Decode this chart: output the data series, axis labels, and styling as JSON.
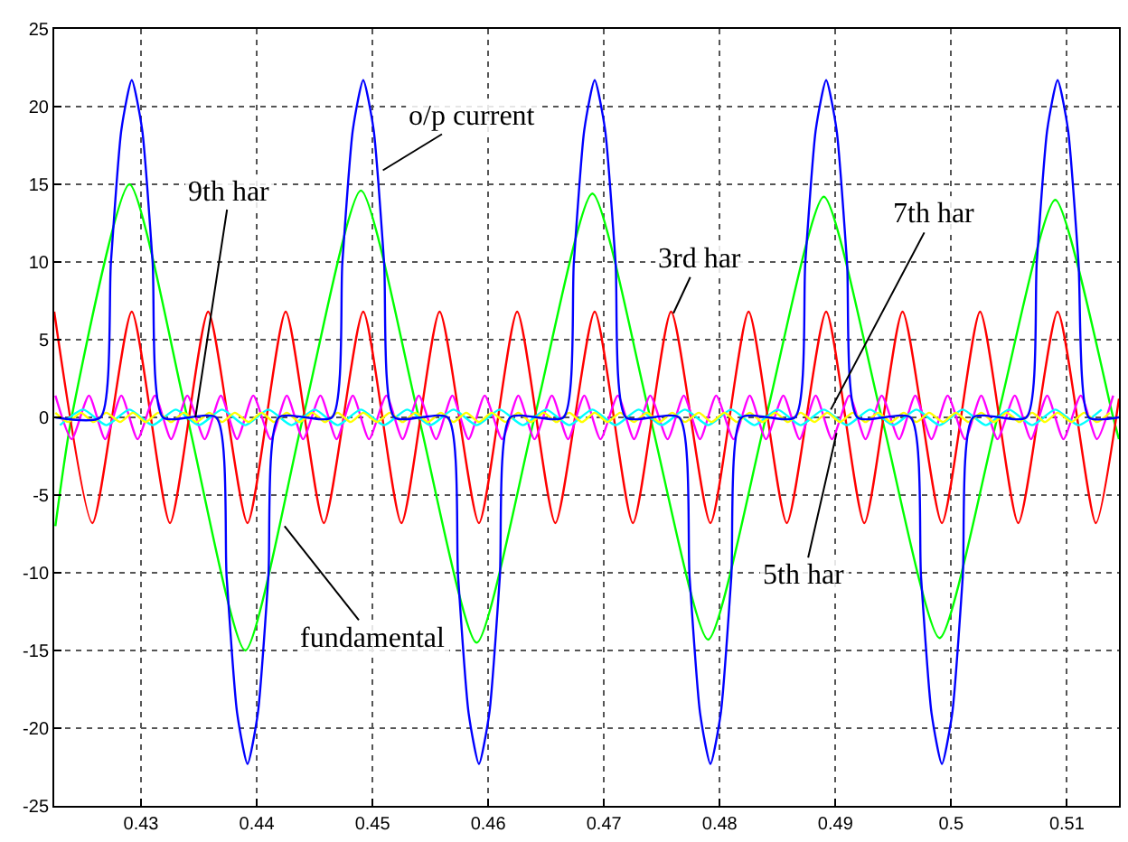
{
  "chart_data": {
    "type": "line",
    "xlim": [
      0.4225,
      0.5145
    ],
    "ylim": [
      -25,
      25
    ],
    "xticks": [
      0.43,
      0.44,
      0.45,
      0.46,
      0.47,
      0.48,
      0.49,
      0.5,
      0.51
    ],
    "yticks": [
      -25,
      -20,
      -15,
      -10,
      -5,
      0,
      5,
      10,
      15,
      20,
      25
    ],
    "grid": true,
    "marker": "none",
    "line_style": "solid",
    "series": [
      {
        "color": "#00ff00",
        "x": [
          0.4226,
          0.424,
          0.429,
          0.434,
          0.439,
          0.444,
          0.449,
          0.454,
          0.459,
          0.464,
          0.469,
          0.474,
          0.479,
          0.484,
          0.489,
          0.494,
          0.499,
          0.504,
          0.509,
          0.514,
          0.5145
        ],
        "values": [
          -7,
          0,
          15,
          0,
          -15,
          0,
          14.6,
          0,
          -14.5,
          0,
          14.4,
          0,
          -14.3,
          0,
          14.2,
          0,
          -14.2,
          0,
          14,
          0,
          -1.4
        ]
      },
      {
        "color": "#ff0000",
        "x": [
          0.4225,
          0.4258,
          0.4292,
          0.4325,
          0.4358,
          0.4392,
          0.4425,
          0.4458,
          0.4492,
          0.4525,
          0.4558,
          0.4592,
          0.4625,
          0.4658,
          0.4692,
          0.4725,
          0.4758,
          0.4792,
          0.4825,
          0.4858,
          0.4892,
          0.4925,
          0.4958,
          0.4992,
          0.5025,
          0.5058,
          0.5092,
          0.5125,
          0.5145
        ],
        "values": [
          6.8,
          -6.8,
          6.8,
          -6.8,
          6.8,
          -6.8,
          6.8,
          -6.8,
          6.8,
          -6.8,
          6.8,
          -6.8,
          6.8,
          -6.8,
          6.8,
          -6.8,
          6.8,
          -6.8,
          6.8,
          -6.8,
          6.8,
          -6.8,
          6.8,
          -6.8,
          6.8,
          -6.8,
          6.8,
          -6.8,
          1.2
        ]
      },
      {
        "color": "#ff00ff",
        "x": [
          0.4226,
          0.424,
          0.4255,
          0.4269,
          0.4283,
          0.4297,
          0.4312,
          0.4326,
          0.434,
          0.4355,
          0.4369,
          0.4383,
          0.4397,
          0.4412,
          0.4426,
          0.444,
          0.4455,
          0.4469,
          0.4483,
          0.4497,
          0.4512,
          0.4526,
          0.454,
          0.4555,
          0.4569,
          0.4583,
          0.4597,
          0.4612,
          0.4626,
          0.464,
          0.4655,
          0.4669,
          0.4683,
          0.4697,
          0.4712,
          0.4726,
          0.474,
          0.4755,
          0.4769,
          0.4783,
          0.4797,
          0.4812,
          0.4826,
          0.484,
          0.4855,
          0.4869,
          0.4883,
          0.4897,
          0.4912,
          0.4926,
          0.494,
          0.4955,
          0.4969,
          0.4983,
          0.4997,
          0.5012,
          0.5026,
          0.504,
          0.5055,
          0.5069,
          0.5083,
          0.5097,
          0.5112,
          0.5126,
          0.514
        ],
        "values": [
          1.4,
          -1.4,
          1.4,
          -1.4,
          1.4,
          -1.4,
          1.4,
          -1.4,
          1.4,
          -1.4,
          1.4,
          -1.4,
          1.4,
          -1.4,
          1.4,
          -1.4,
          1.4,
          -1.4,
          1.4,
          -1.4,
          1.4,
          -1.4,
          1.4,
          -1.4,
          1.4,
          -1.4,
          1.4,
          -1.4,
          1.4,
          -1.4,
          1.4,
          -1.4,
          1.4,
          -1.4,
          1.4,
          -1.4,
          1.4,
          -1.4,
          1.4,
          -1.4,
          1.4,
          -1.4,
          1.4,
          -1.4,
          1.4,
          -1.4,
          1.4,
          -1.4,
          1.4,
          -1.4,
          1.4,
          -1.4,
          1.4,
          -1.4,
          1.4,
          -1.4,
          1.4,
          -1.4,
          1.4,
          -1.4,
          1.4,
          -1.4,
          1.4,
          -1.4,
          1.4
        ]
      },
      {
        "color": "#00ffff",
        "x": [
          0.423,
          0.425,
          0.427,
          0.429,
          0.431,
          0.433,
          0.435,
          0.437,
          0.439,
          0.441,
          0.443,
          0.445,
          0.447,
          0.449,
          0.451,
          0.453,
          0.455,
          0.457,
          0.459,
          0.461,
          0.463,
          0.465,
          0.467,
          0.469,
          0.471,
          0.473,
          0.475,
          0.477,
          0.479,
          0.481,
          0.483,
          0.485,
          0.487,
          0.489,
          0.491,
          0.493,
          0.495,
          0.497,
          0.499,
          0.501,
          0.503,
          0.505,
          0.507,
          0.509,
          0.511,
          0.513
        ],
        "values": [
          -0.5,
          0.5,
          -0.5,
          0.5,
          -0.5,
          0.5,
          -0.5,
          0.5,
          -0.5,
          0.5,
          -0.5,
          0.5,
          -0.5,
          0.5,
          -0.5,
          0.5,
          -0.5,
          0.5,
          -0.5,
          0.5,
          -0.5,
          0.5,
          -0.5,
          0.5,
          -0.5,
          0.5,
          -0.5,
          0.5,
          -0.5,
          0.5,
          -0.5,
          0.5,
          -0.5,
          0.5,
          -0.5,
          0.5,
          -0.5,
          0.5,
          -0.5,
          0.5,
          -0.5,
          0.5,
          -0.5,
          0.5,
          -0.5,
          0.5
        ]
      },
      {
        "color": "#ffff00",
        "x": [
          0.4226,
          0.4237,
          0.4248,
          0.4259,
          0.427,
          0.4282,
          0.4293,
          0.4304,
          0.4315,
          0.4326,
          0.4337,
          0.4348,
          0.4359,
          0.437,
          0.4381,
          0.4393,
          0.4404,
          0.4415,
          0.4426,
          0.4437,
          0.4448,
          0.4459,
          0.447,
          0.4481,
          0.4492,
          0.4504,
          0.4515,
          0.4526,
          0.4537,
          0.4548,
          0.4559,
          0.457,
          0.4581,
          0.4592,
          0.4603,
          0.4615,
          0.4626,
          0.4637,
          0.4648,
          0.4659,
          0.467,
          0.4681,
          0.4692,
          0.4703,
          0.4714,
          0.4726,
          0.4737,
          0.4748,
          0.4759,
          0.477,
          0.4782,
          0.4793,
          0.4804,
          0.4815,
          0.4826,
          0.4837,
          0.4848,
          0.4859,
          0.487,
          0.4882,
          0.4893,
          0.4904,
          0.4915,
          0.4926,
          0.4937,
          0.4948,
          0.4959,
          0.497,
          0.4981,
          0.4993,
          0.5004,
          0.5015,
          0.5026,
          0.5037,
          0.5048,
          0.5059,
          0.507,
          0.5081,
          0.5092,
          0.5104,
          0.5115,
          0.5126,
          0.5137
        ],
        "values": [
          0.3,
          -0.3,
          0.3,
          -0.3,
          0.3,
          -0.3,
          0.3,
          -0.3,
          0.3,
          -0.3,
          0.3,
          -0.3,
          0.3,
          -0.3,
          0.3,
          -0.3,
          0.3,
          -0.3,
          0.3,
          -0.3,
          0.3,
          -0.3,
          0.3,
          -0.3,
          0.3,
          -0.3,
          0.3,
          -0.3,
          0.3,
          -0.3,
          0.3,
          -0.3,
          0.3,
          -0.3,
          0.3,
          -0.3,
          0.3,
          -0.3,
          0.3,
          -0.3,
          0.3,
          -0.3,
          0.3,
          -0.3,
          0.3,
          -0.3,
          0.3,
          -0.3,
          0.3,
          -0.3,
          0.3,
          -0.3,
          0.3,
          -0.3,
          0.3,
          -0.3,
          0.3,
          -0.3,
          0.3,
          -0.3,
          0.3,
          -0.3,
          0.3,
          -0.3,
          0.3,
          -0.3,
          0.3,
          -0.3,
          0.3,
          -0.3,
          0.3,
          -0.3,
          0.3,
          -0.3,
          0.3,
          -0.3,
          0.3,
          -0.3,
          0.3,
          -0.3,
          0.3,
          -0.3,
          0.3
        ]
      },
      {
        "color": "#0000ff",
        "x": [
          0.4226,
          0.4265,
          0.4274,
          0.4283,
          0.4292,
          0.4301,
          0.431,
          0.4319,
          0.4365,
          0.4374,
          0.4383,
          0.4392,
          0.4401,
          0.441,
          0.4419,
          0.4465,
          0.4474,
          0.4483,
          0.4492,
          0.4501,
          0.451,
          0.4519,
          0.4565,
          0.4574,
          0.4583,
          0.4592,
          0.4601,
          0.461,
          0.4619,
          0.4665,
          0.4674,
          0.4683,
          0.4692,
          0.4701,
          0.471,
          0.4719,
          0.4765,
          0.4774,
          0.4783,
          0.4792,
          0.4801,
          0.481,
          0.4819,
          0.4865,
          0.4874,
          0.4883,
          0.4892,
          0.4901,
          0.491,
          0.4919,
          0.4965,
          0.4974,
          0.4983,
          0.4992,
          0.5001,
          0.501,
          0.5019,
          0.5065,
          0.5074,
          0.5083,
          0.5092,
          0.5101,
          0.511,
          0.5119,
          0.5145
        ],
        "values": [
          0,
          0,
          10,
          18.5,
          21.7,
          18.5,
          10,
          0,
          0,
          -10.3,
          -19,
          -22.3,
          -19,
          -10.3,
          0,
          0,
          10,
          18.5,
          21.7,
          18.5,
          10,
          0,
          0,
          -10.3,
          -19,
          -22.3,
          -19,
          -10.3,
          0,
          0,
          10,
          18.5,
          21.7,
          18.5,
          10,
          0,
          0,
          -10.3,
          -19,
          -22.3,
          -19,
          -10.3,
          0,
          0,
          10,
          18.5,
          21.7,
          18.5,
          10,
          0,
          0,
          -10.3,
          -19,
          -22.3,
          -19,
          -10.3,
          0,
          0,
          10,
          18.5,
          21.7,
          18.5,
          10,
          0,
          0
        ]
      }
    ],
    "annotations": [
      {
        "text": "o/p current",
        "x": 0.4509,
        "y": 15.9
      },
      {
        "text": "9th har",
        "x": 0.4347,
        "y": 0
      },
      {
        "text": "3rd har",
        "x": 0.476,
        "y": 6.7
      },
      {
        "text": "7th har",
        "x": 0.4896,
        "y": 0.5
      },
      {
        "text": "5th har",
        "x": 0.4901,
        "y": -1
      },
      {
        "text": "fundamental",
        "x": 0.4424,
        "y": -7
      }
    ]
  }
}
